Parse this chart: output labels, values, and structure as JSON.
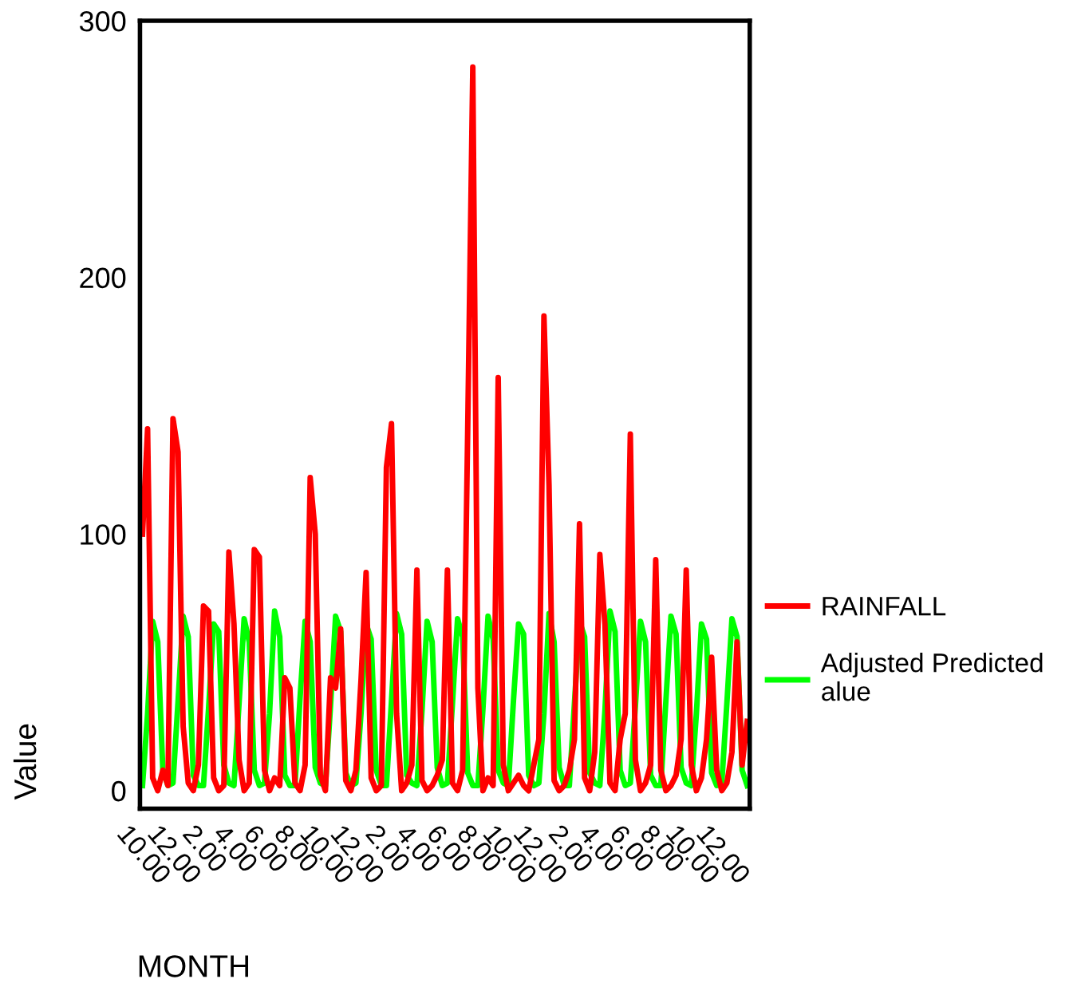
{
  "chart_data": {
    "type": "line",
    "xlabel": "MONTH",
    "ylabel": "Value",
    "categories": [
      "10.00",
      null,
      null,
      null,
      null,
      null,
      "12.00",
      null,
      null,
      null,
      null,
      null,
      "2.00",
      null,
      null,
      null,
      null,
      null,
      "4.00",
      null,
      null,
      null,
      null,
      null,
      "6.00",
      null,
      null,
      null,
      null,
      null,
      "8.00",
      null,
      null,
      null,
      null,
      null,
      "10.00",
      null,
      null,
      null,
      null,
      null,
      "12.00",
      null,
      null,
      null,
      null,
      null,
      "2.00",
      null,
      null,
      null,
      null,
      null,
      "4.00",
      null,
      null,
      null,
      null,
      null,
      "6.00",
      null,
      null,
      null,
      null,
      null,
      "8.00",
      null,
      null,
      null,
      null,
      null,
      "10.00",
      null,
      null,
      null,
      null,
      null,
      "12.00",
      null,
      null,
      null,
      null,
      null,
      "2.00",
      null,
      null,
      null,
      null,
      null,
      "4.00",
      null,
      null,
      null,
      null,
      null,
      "6.00",
      null,
      null,
      null,
      null,
      null,
      "8.00",
      null,
      null,
      null,
      null,
      null,
      "10.00",
      null,
      null,
      null,
      null,
      null,
      "12.00",
      null,
      null,
      null,
      null,
      null
    ],
    "series": [
      {
        "name": "Adjusted Predicted\nalue",
        "color": "#00ff00",
        "values": [
          2,
          30,
          66,
          58,
          8,
          2,
          3,
          35,
          68,
          60,
          6,
          2,
          2,
          32,
          65,
          62,
          10,
          3,
          2,
          34,
          67,
          58,
          8,
          2,
          3,
          30,
          70,
          60,
          6,
          2,
          2,
          36,
          66,
          58,
          9,
          3,
          2,
          33,
          68,
          62,
          7,
          2,
          3,
          30,
          65,
          59,
          8,
          2,
          2,
          35,
          69,
          61,
          6,
          3,
          2,
          31,
          66,
          58,
          9,
          2,
          3,
          34,
          67,
          60,
          7,
          2,
          2,
          32,
          68,
          59,
          8,
          3,
          2,
          35,
          65,
          61,
          6,
          2,
          3,
          30,
          69,
          58,
          9,
          2,
          2,
          34,
          66,
          60,
          7,
          3,
          2,
          31,
          70,
          62,
          8,
          2,
          3,
          33,
          66,
          58,
          6,
          2,
          2,
          35,
          68,
          61,
          9,
          3,
          2,
          30,
          65,
          59,
          7,
          2,
          3,
          34,
          67,
          60,
          8,
          2
        ]
      },
      {
        "name": "RAINFALL",
        "color": "#ff0000",
        "values": [
          100,
          141,
          5,
          0,
          8,
          2,
          145,
          132,
          25,
          3,
          0,
          10,
          72,
          70,
          5,
          0,
          2,
          93,
          65,
          12,
          0,
          3,
          94,
          91,
          8,
          0,
          5,
          2,
          44,
          40,
          3,
          0,
          10,
          122,
          100,
          6,
          0,
          44,
          40,
          63,
          4,
          0,
          8,
          43,
          85,
          5,
          0,
          2,
          126,
          143,
          30,
          0,
          3,
          10,
          86,
          4,
          0,
          2,
          6,
          12,
          86,
          3,
          0,
          8,
          141,
          282,
          40,
          0,
          5,
          2,
          161,
          10,
          0,
          3,
          6,
          2,
          0,
          10,
          20,
          185,
          119,
          4,
          0,
          2,
          8,
          20,
          104,
          5,
          0,
          15,
          92,
          65,
          3,
          0,
          20,
          30,
          139,
          12,
          0,
          3,
          10,
          90,
          8,
          0,
          2,
          6,
          20,
          86,
          10,
          0,
          5,
          20,
          52,
          8,
          0,
          3,
          15,
          58,
          10,
          27
        ]
      }
    ],
    "ylim": [
      -7,
      300
    ],
    "yticks": [
      0,
      100,
      200,
      300
    ],
    "grid": false,
    "legend": "right",
    "marker": "none",
    "line_style": "solid"
  }
}
